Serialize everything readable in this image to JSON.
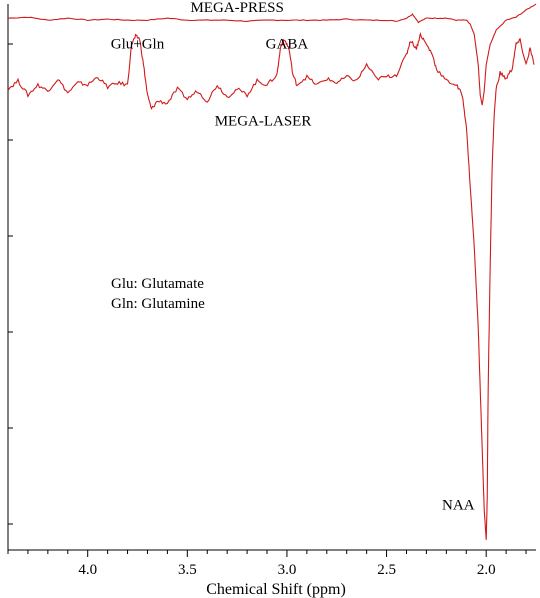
{
  "chart_data": {
    "type": "line",
    "title": "",
    "xlabel": "Chemical Shift (ppm)",
    "ylabel": "",
    "x_reversed": true,
    "xlim": [
      4.4,
      1.75
    ],
    "ylim": [
      -2.6,
      0.1
    ],
    "grid": false,
    "x_ticks": [
      4.0,
      3.5,
      3.0,
      2.5,
      2.0
    ],
    "x_tick_labels": [
      "4.0",
      "3.5",
      "3.0",
      "2.5",
      "2.0"
    ],
    "line_color": "#d11a1a",
    "series": [
      {
        "name": "MEGA-PRESS",
        "points": [
          [
            4.4,
            0.03
          ],
          [
            4.3,
            0.035
          ],
          [
            4.2,
            0.02
          ],
          [
            4.1,
            0.03
          ],
          [
            4.0,
            0.02
          ],
          [
            3.9,
            0.025
          ],
          [
            3.8,
            0.02
          ],
          [
            3.7,
            0.02
          ],
          [
            3.6,
            0.03
          ],
          [
            3.5,
            0.02
          ],
          [
            3.4,
            0.02
          ],
          [
            3.3,
            0.02
          ],
          [
            3.2,
            0.015
          ],
          [
            3.1,
            0.02
          ],
          [
            3.0,
            0.02
          ],
          [
            2.9,
            0.02
          ],
          [
            2.8,
            0.02
          ],
          [
            2.7,
            0.025
          ],
          [
            2.6,
            0.02
          ],
          [
            2.5,
            0.02
          ],
          [
            2.45,
            0.015
          ],
          [
            2.4,
            0.03
          ],
          [
            2.37,
            0.05
          ],
          [
            2.34,
            0.01
          ],
          [
            2.3,
            0.03
          ],
          [
            2.25,
            0.03
          ],
          [
            2.2,
            0.03
          ],
          [
            2.15,
            0.02
          ],
          [
            2.1,
            0.02
          ],
          [
            2.08,
            0.0
          ],
          [
            2.06,
            -0.05
          ],
          [
            2.04,
            -0.2
          ],
          [
            2.03,
            -0.35
          ],
          [
            2.02,
            -0.4
          ],
          [
            2.01,
            -0.33
          ],
          [
            2.0,
            -0.2
          ],
          [
            1.98,
            -0.1
          ],
          [
            1.95,
            -0.03
          ],
          [
            1.9,
            0.02
          ],
          [
            1.85,
            0.035
          ],
          [
            1.8,
            0.07
          ],
          [
            1.75,
            0.1
          ]
        ]
      },
      {
        "name": "MEGA-LASER",
        "points": [
          [
            4.4,
            -0.32
          ],
          [
            4.35,
            -0.28
          ],
          [
            4.3,
            -0.35
          ],
          [
            4.25,
            -0.3
          ],
          [
            4.2,
            -0.33
          ],
          [
            4.15,
            -0.27
          ],
          [
            4.1,
            -0.34
          ],
          [
            4.05,
            -0.29
          ],
          [
            4.0,
            -0.3
          ],
          [
            3.95,
            -0.26
          ],
          [
            3.9,
            -0.31
          ],
          [
            3.85,
            -0.29
          ],
          [
            3.8,
            -0.3
          ],
          [
            3.78,
            -0.1
          ],
          [
            3.76,
            -0.06
          ],
          [
            3.74,
            -0.07
          ],
          [
            3.72,
            -0.2
          ],
          [
            3.7,
            -0.35
          ],
          [
            3.68,
            -0.42
          ],
          [
            3.65,
            -0.38
          ],
          [
            3.6,
            -0.39
          ],
          [
            3.55,
            -0.32
          ],
          [
            3.5,
            -0.37
          ],
          [
            3.45,
            -0.33
          ],
          [
            3.4,
            -0.38
          ],
          [
            3.35,
            -0.3
          ],
          [
            3.3,
            -0.36
          ],
          [
            3.25,
            -0.32
          ],
          [
            3.2,
            -0.35
          ],
          [
            3.15,
            -0.28
          ],
          [
            3.1,
            -0.3
          ],
          [
            3.05,
            -0.25
          ],
          [
            3.03,
            -0.1
          ],
          [
            3.01,
            -0.08
          ],
          [
            2.99,
            -0.12
          ],
          [
            2.97,
            -0.25
          ],
          [
            2.95,
            -0.3
          ],
          [
            2.9,
            -0.26
          ],
          [
            2.85,
            -0.3
          ],
          [
            2.8,
            -0.27
          ],
          [
            2.75,
            -0.29
          ],
          [
            2.7,
            -0.26
          ],
          [
            2.65,
            -0.28
          ],
          [
            2.6,
            -0.2
          ],
          [
            2.55,
            -0.27
          ],
          [
            2.5,
            -0.26
          ],
          [
            2.45,
            -0.25
          ],
          [
            2.4,
            -0.15
          ],
          [
            2.38,
            -0.08
          ],
          [
            2.35,
            -0.12
          ],
          [
            2.33,
            -0.05
          ],
          [
            2.3,
            -0.1
          ],
          [
            2.27,
            -0.15
          ],
          [
            2.25,
            -0.22
          ],
          [
            2.2,
            -0.28
          ],
          [
            2.15,
            -0.3
          ],
          [
            2.12,
            -0.35
          ],
          [
            2.1,
            -0.5
          ],
          [
            2.08,
            -0.8
          ],
          [
            2.06,
            -1.1
          ],
          [
            2.05,
            -1.3
          ],
          [
            2.04,
            -1.5
          ],
          [
            2.03,
            -1.8
          ],
          [
            2.02,
            -2.1
          ],
          [
            2.01,
            -2.4
          ],
          [
            2.0,
            -2.55
          ],
          [
            1.995,
            -2.35
          ],
          [
            1.99,
            -1.8
          ],
          [
            1.98,
            -1.2
          ],
          [
            1.97,
            -0.7
          ],
          [
            1.96,
            -0.45
          ],
          [
            1.95,
            -0.32
          ],
          [
            1.93,
            -0.24
          ],
          [
            1.9,
            -0.27
          ],
          [
            1.87,
            -0.22
          ],
          [
            1.85,
            -0.1
          ],
          [
            1.83,
            -0.08
          ],
          [
            1.8,
            -0.2
          ],
          [
            1.78,
            -0.12
          ],
          [
            1.76,
            -0.2
          ]
        ]
      }
    ],
    "annotations": [
      {
        "text": "MEGA-PRESS",
        "x": 3.25,
        "y": 0.06
      },
      {
        "text": "Glu+Gln",
        "x": 3.75,
        "y": -0.12
      },
      {
        "text": "GABA",
        "x": 3.0,
        "y": -0.12
      },
      {
        "text": "MEGA-LASER",
        "x": 3.12,
        "y": -0.5
      },
      {
        "text": "NAA",
        "x": 2.14,
        "y": -2.4
      }
    ],
    "legend_text": [
      "Glu: Glutamate",
      "Gln: Glutamine"
    ]
  }
}
